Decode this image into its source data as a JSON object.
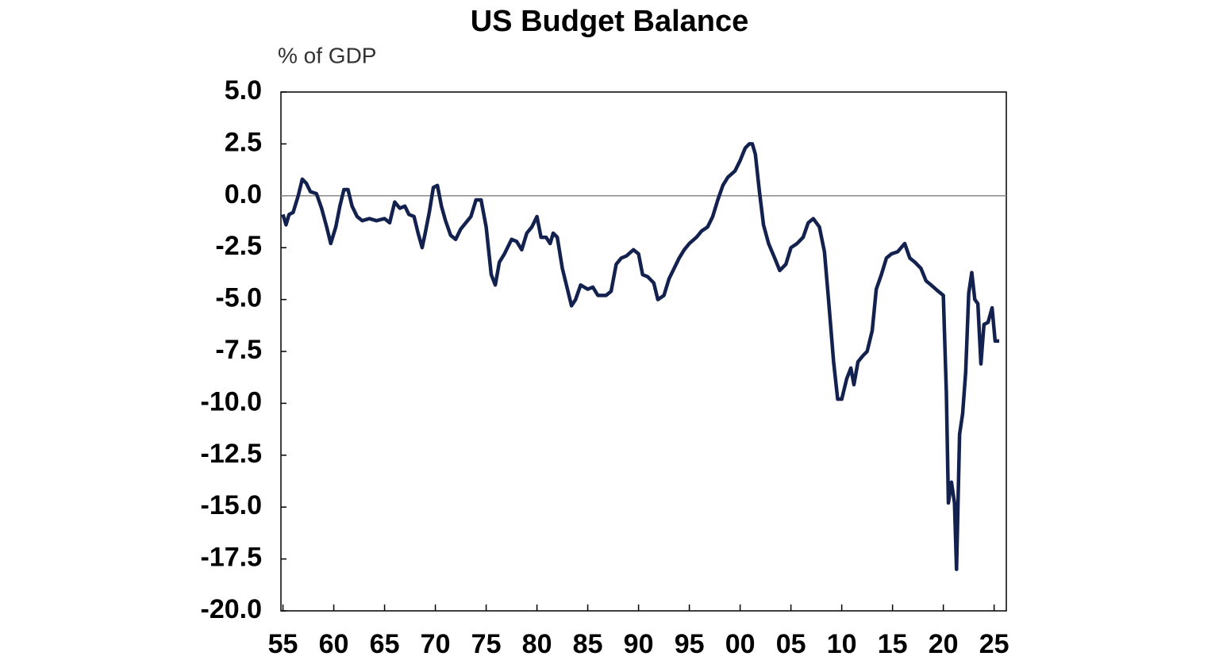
{
  "chart_data": {
    "type": "line",
    "title": "US Budget Balance",
    "y_label": "% of GDP",
    "x": [
      1955.0,
      1955.3,
      1955.6,
      1956.0,
      1956.5,
      1956.9,
      1957.3,
      1957.7,
      1958.3,
      1958.8,
      1959.3,
      1959.7,
      1960.2,
      1960.6,
      1961.0,
      1961.4,
      1961.8,
      1962.3,
      1962.8,
      1963.5,
      1964.2,
      1965.0,
      1965.5,
      1966.0,
      1966.5,
      1967.0,
      1967.4,
      1967.9,
      1968.3,
      1968.7,
      1969.0,
      1969.4,
      1969.8,
      1970.2,
      1970.6,
      1971.0,
      1971.5,
      1972.0,
      1972.5,
      1973.0,
      1973.5,
      1974.0,
      1974.5,
      1975.0,
      1975.5,
      1975.9,
      1976.3,
      1976.8,
      1977.5,
      1978.0,
      1978.5,
      1979.0,
      1979.5,
      1980.0,
      1980.4,
      1980.9,
      1981.3,
      1981.6,
      1982.0,
      1982.5,
      1983.0,
      1983.4,
      1983.8,
      1984.3,
      1985.0,
      1985.5,
      1986.0,
      1986.8,
      1987.3,
      1987.8,
      1988.3,
      1988.8,
      1989.5,
      1990.0,
      1990.4,
      1990.9,
      1991.5,
      1991.9,
      1992.5,
      1993.0,
      1993.5,
      1994.0,
      1994.5,
      1995.0,
      1995.7,
      1996.2,
      1996.8,
      1997.3,
      1997.8,
      1998.3,
      1998.8,
      1999.5,
      2000.0,
      2000.5,
      2000.9,
      2001.2,
      2001.5,
      2001.9,
      2002.3,
      2002.8,
      2003.4,
      2003.9,
      2004.5,
      2005.0,
      2005.6,
      2006.2,
      2006.7,
      2007.2,
      2007.8,
      2008.3,
      2008.7,
      2009.2,
      2009.6,
      2010.0,
      2010.5,
      2010.9,
      2011.2,
      2011.6,
      2012.1,
      2012.5,
      2013.0,
      2013.4,
      2013.9,
      2014.4,
      2014.9,
      2015.5,
      2016.2,
      2016.7,
      2017.2,
      2017.8,
      2018.3,
      2018.8,
      2019.5,
      2020.0,
      2020.3,
      2020.5,
      2020.8,
      2021.1,
      2021.3,
      2021.6,
      2021.9,
      2022.2,
      2022.5,
      2022.8,
      2023.1,
      2023.4,
      2023.7,
      2024.0,
      2024.4,
      2024.8,
      2025.1,
      2025.5
    ],
    "series": [
      {
        "color": "#13214f",
        "values": [
          -0.9,
          -1.4,
          -0.9,
          -0.8,
          0.0,
          0.8,
          0.6,
          0.2,
          0.1,
          -0.6,
          -1.5,
          -2.3,
          -1.5,
          -0.5,
          0.3,
          0.3,
          -0.5,
          -1.0,
          -1.2,
          -1.1,
          -1.2,
          -1.1,
          -1.3,
          -0.3,
          -0.6,
          -0.5,
          -0.9,
          -1.0,
          -1.8,
          -2.5,
          -1.8,
          -0.8,
          0.4,
          0.5,
          -0.5,
          -1.2,
          -1.9,
          -2.1,
          -1.6,
          -1.3,
          -1.0,
          -0.2,
          -0.2,
          -1.5,
          -3.8,
          -4.3,
          -3.2,
          -2.8,
          -2.1,
          -2.2,
          -2.6,
          -1.8,
          -1.5,
          -1.0,
          -2.0,
          -2.0,
          -2.3,
          -1.8,
          -2.0,
          -3.5,
          -4.5,
          -5.3,
          -5.0,
          -4.3,
          -4.5,
          -4.4,
          -4.8,
          -4.8,
          -4.6,
          -3.3,
          -3.0,
          -2.9,
          -2.6,
          -2.8,
          -3.8,
          -3.9,
          -4.2,
          -5.0,
          -4.8,
          -4.0,
          -3.5,
          -3.0,
          -2.6,
          -2.3,
          -2.0,
          -1.7,
          -1.5,
          -1.0,
          -0.2,
          0.5,
          0.9,
          1.2,
          1.7,
          2.3,
          2.5,
          2.5,
          2.0,
          0.2,
          -1.4,
          -2.3,
          -3.0,
          -3.6,
          -3.3,
          -2.5,
          -2.3,
          -2.0,
          -1.3,
          -1.1,
          -1.5,
          -2.7,
          -5.0,
          -8.0,
          -9.8,
          -9.8,
          -8.8,
          -8.3,
          -9.1,
          -8.0,
          -7.7,
          -7.5,
          -6.5,
          -4.5,
          -3.8,
          -3.0,
          -2.8,
          -2.7,
          -2.3,
          -3.0,
          -3.2,
          -3.5,
          -4.1,
          -4.3,
          -4.6,
          -4.8,
          -9.5,
          -14.8,
          -13.8,
          -14.8,
          -18.0,
          -11.5,
          -10.5,
          -8.5,
          -4.7,
          -3.7,
          -5.0,
          -5.2,
          -8.1,
          -6.2,
          -6.1,
          -5.4,
          -7.0,
          -7.0
        ]
      }
    ],
    "xlim": [
      1954.8,
      2026.2
    ],
    "xticks": [
      {
        "value": 1955,
        "label": "55"
      },
      {
        "value": 1960,
        "label": "60"
      },
      {
        "value": 1965,
        "label": "65"
      },
      {
        "value": 1970,
        "label": "70"
      },
      {
        "value": 1975,
        "label": "75"
      },
      {
        "value": 1980,
        "label": "80"
      },
      {
        "value": 1985,
        "label": "85"
      },
      {
        "value": 1990,
        "label": "90"
      },
      {
        "value": 1995,
        "label": "95"
      },
      {
        "value": 2000,
        "label": "00"
      },
      {
        "value": 2005,
        "label": "05"
      },
      {
        "value": 2010,
        "label": "10"
      },
      {
        "value": 2015,
        "label": "15"
      },
      {
        "value": 2020,
        "label": "20"
      },
      {
        "value": 2025,
        "label": "25"
      }
    ],
    "ylim": [
      -20,
      5
    ],
    "yticks": [
      {
        "value": 5,
        "label": "5.0"
      },
      {
        "value": 2.5,
        "label": "2.5"
      },
      {
        "value": 0,
        "label": "0.0"
      },
      {
        "value": -2.5,
        "label": "-2.5"
      },
      {
        "value": -5,
        "label": "-5.0"
      },
      {
        "value": -7.5,
        "label": "-7.5"
      },
      {
        "value": -10,
        "label": "-10.0"
      },
      {
        "value": -12.5,
        "label": "-12.5"
      },
      {
        "value": -15,
        "label": "-15.0"
      },
      {
        "value": -17.5,
        "label": "-17.5"
      },
      {
        "value": -20,
        "label": "-20.0"
      }
    ],
    "zero_line": true
  }
}
